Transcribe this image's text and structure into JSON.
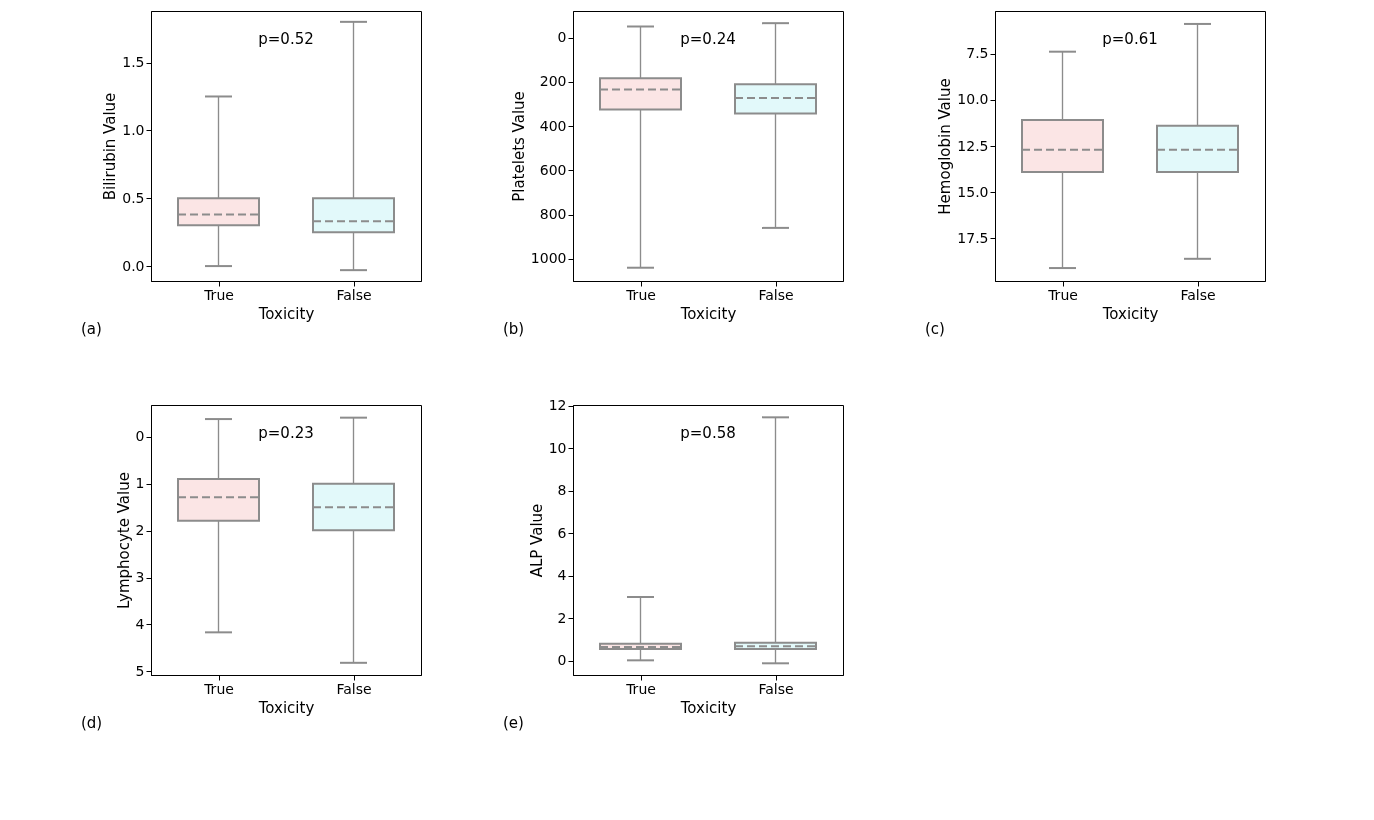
{
  "chart_data": [
    {
      "type": "box",
      "xlabel": "Toxicity",
      "ylabel": "Bilirubin Value",
      "categories": [
        "True",
        "False"
      ],
      "colors": [
        "#fbe5e5",
        "#e2f9fa"
      ],
      "grid": false,
      "ylim": [
        -0.11,
        1.88
      ],
      "yticks": [
        {
          "value": 0,
          "label": "0.0"
        },
        0.5,
        {
          "value": 1,
          "label": "1.0"
        },
        1.5
      ],
      "boxes": [
        {
          "low": 0.0,
          "q1": 0.3,
          "median": 0.38,
          "q3": 0.5,
          "high": 1.25
        },
        {
          "low": -0.03,
          "q1": 0.25,
          "median": 0.33,
          "q3": 0.5,
          "high": 1.8
        }
      ],
      "annotations": [
        "p=0.52",
        "(a)"
      ]
    },
    {
      "type": "box",
      "xlabel": "Toxicity",
      "ylabel": "Platelets Value",
      "categories": [
        "True",
        "False"
      ],
      "colors": [
        "#fbe5e5",
        "#e2f9fa"
      ],
      "grid": false,
      "ylim": [
        1100,
        -120
      ],
      "yticks": [
        0,
        200,
        400,
        600,
        800,
        1000
      ],
      "boxes": [
        {
          "low": -50,
          "q1": 184,
          "median": 235,
          "q3": 325,
          "high": 1040
        },
        {
          "low": -65,
          "q1": 211,
          "median": 273,
          "q3": 343,
          "high": 860
        }
      ],
      "annotations": [
        "p=0.24",
        "(b)"
      ]
    },
    {
      "type": "box",
      "xlabel": "Toxicity",
      "ylabel": "Hemoglobin Value",
      "categories": [
        "True",
        "False"
      ],
      "colors": [
        "#fbe5e5",
        "#e2f9fa"
      ],
      "grid": false,
      "ylim": [
        19.8,
        5.2
      ],
      "yticks": [
        7.5,
        {
          "value": 10,
          "label": "10.0"
        },
        12.5,
        {
          "value": 15,
          "label": "15.0"
        },
        17.5
      ],
      "boxes": [
        {
          "low": 7.4,
          "q1": 11.1,
          "median": 12.7,
          "q3": 13.9,
          "high": 19.1
        },
        {
          "low": 5.9,
          "q1": 11.4,
          "median": 12.7,
          "q3": 13.9,
          "high": 18.6
        }
      ],
      "annotations": [
        "p=0.61",
        "(c)"
      ]
    },
    {
      "type": "box",
      "xlabel": "Toxicity",
      "ylabel": "Lymphocyte Value",
      "categories": [
        "True",
        "False"
      ],
      "colors": [
        "#fbe5e5",
        "#e2f9fa"
      ],
      "grid": false,
      "ylim": [
        5.08,
        -0.68
      ],
      "yticks": [
        0,
        1,
        2,
        3,
        4,
        5
      ],
      "boxes": [
        {
          "low": -0.38,
          "q1": 0.9,
          "median": 1.29,
          "q3": 1.79,
          "high": 4.17
        },
        {
          "low": -0.41,
          "q1": 1.0,
          "median": 1.5,
          "q3": 1.99,
          "high": 4.82
        }
      ],
      "annotations": [
        "p=0.23",
        "(d)"
      ]
    },
    {
      "type": "box",
      "xlabel": "Toxicity",
      "ylabel": "ALP Value",
      "categories": [
        "True",
        "False"
      ],
      "colors": [
        "#fbe5e5",
        "#e2f9fa"
      ],
      "grid": false,
      "ylim": [
        -0.67,
        12.03
      ],
      "yticks": [
        0,
        2,
        4,
        6,
        8,
        10,
        12
      ],
      "boxes": [
        {
          "low": 0.02,
          "q1": 0.55,
          "median": 0.65,
          "q3": 0.8,
          "high": 3.0
        },
        {
          "low": -0.12,
          "q1": 0.55,
          "median": 0.68,
          "q3": 0.85,
          "high": 11.45
        }
      ],
      "annotations": [
        "p=0.58",
        "(e)"
      ]
    }
  ]
}
